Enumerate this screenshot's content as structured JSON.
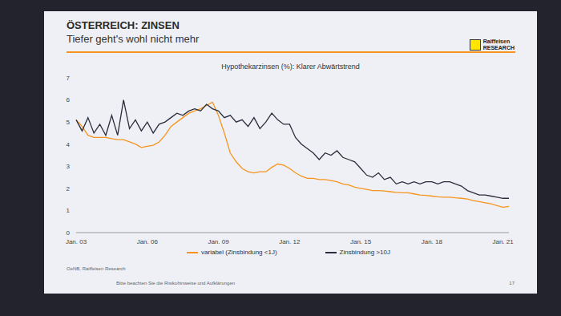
{
  "header": {
    "title": "ÖSTERREICH: ZINSEN",
    "subtitle": "Tiefer geht's wohl nicht mehr",
    "logo": [
      "Raiffeisen",
      "RESEARCH"
    ]
  },
  "footer": {
    "source": "OeNB, Raiffeisen Research",
    "note": "Bitte beachten Sie die Risikohinweise und Aufklärungen",
    "page": "17"
  },
  "chart_data": {
    "type": "line",
    "title": "Hypothekarzinsen (%): Klarer Abwärtstrend",
    "categories": [
      "Jan. 03",
      null,
      null,
      null,
      null,
      null,
      null,
      null,
      null,
      null,
      null,
      null,
      "Jan. 06",
      null,
      null,
      null,
      null,
      null,
      null,
      null,
      null,
      null,
      null,
      null,
      "Jan. 09",
      null,
      null,
      null,
      null,
      null,
      null,
      null,
      null,
      null,
      null,
      null,
      "Jan. 12",
      null,
      null,
      null,
      null,
      null,
      null,
      null,
      null,
      null,
      null,
      null,
      "Jan. 15",
      null,
      null,
      null,
      null,
      null,
      null,
      null,
      null,
      null,
      null,
      null,
      "Jan. 18",
      null,
      null,
      null,
      null,
      null,
      null,
      null,
      null,
      null,
      null,
      null,
      "Jan. 21",
      null
    ],
    "series": [
      {
        "name": "variabel (Zinsbindung <1J)",
        "color": "#f7941d",
        "values": [
          5.1,
          4.8,
          4.4,
          4.3,
          4.3,
          4.3,
          4.25,
          4.2,
          4.2,
          4.1,
          4.0,
          3.85,
          3.9,
          3.95,
          4.1,
          4.4,
          4.8,
          5.0,
          5.2,
          5.4,
          5.5,
          5.6,
          5.75,
          5.9,
          5.3,
          4.5,
          3.6,
          3.2,
          2.9,
          2.75,
          2.7,
          2.75,
          2.75,
          2.95,
          3.1,
          3.05,
          2.9,
          2.7,
          2.55,
          2.45,
          2.45,
          2.4,
          2.4,
          2.35,
          2.3,
          2.2,
          2.15,
          2.05,
          2.0,
          1.95,
          1.9,
          1.9,
          1.88,
          1.85,
          1.82,
          1.8,
          1.8,
          1.75,
          1.7,
          1.68,
          1.65,
          1.62,
          1.6,
          1.6,
          1.57,
          1.55,
          1.52,
          1.45,
          1.4,
          1.35,
          1.3,
          1.22,
          1.15,
          1.18
        ]
      },
      {
        "name": "Zinsbindung >10J",
        "color": "#2b2d3c",
        "values": [
          5.1,
          4.6,
          5.2,
          4.5,
          4.9,
          4.4,
          5.3,
          4.4,
          6.0,
          4.7,
          5.1,
          4.6,
          5.0,
          4.5,
          4.9,
          5.0,
          5.2,
          5.4,
          5.3,
          5.5,
          5.6,
          5.5,
          5.8,
          5.6,
          5.5,
          5.2,
          5.3,
          5.0,
          5.1,
          4.8,
          5.2,
          4.7,
          5.0,
          5.4,
          5.1,
          4.9,
          4.9,
          4.3,
          4.0,
          3.8,
          3.6,
          3.3,
          3.6,
          3.5,
          3.7,
          3.4,
          3.3,
          3.2,
          2.9,
          2.6,
          2.5,
          2.7,
          2.4,
          2.5,
          2.2,
          2.3,
          2.2,
          2.3,
          2.2,
          2.3,
          2.3,
          2.2,
          2.3,
          2.3,
          2.2,
          2.1,
          1.9,
          1.8,
          1.7,
          1.7,
          1.65,
          1.6,
          1.55,
          1.55
        ]
      }
    ],
    "ylim": [
      0,
      7
    ],
    "yticks": [
      0,
      1,
      2,
      3,
      4,
      5,
      6,
      7
    ],
    "grid": false,
    "legend": "bottom"
  }
}
